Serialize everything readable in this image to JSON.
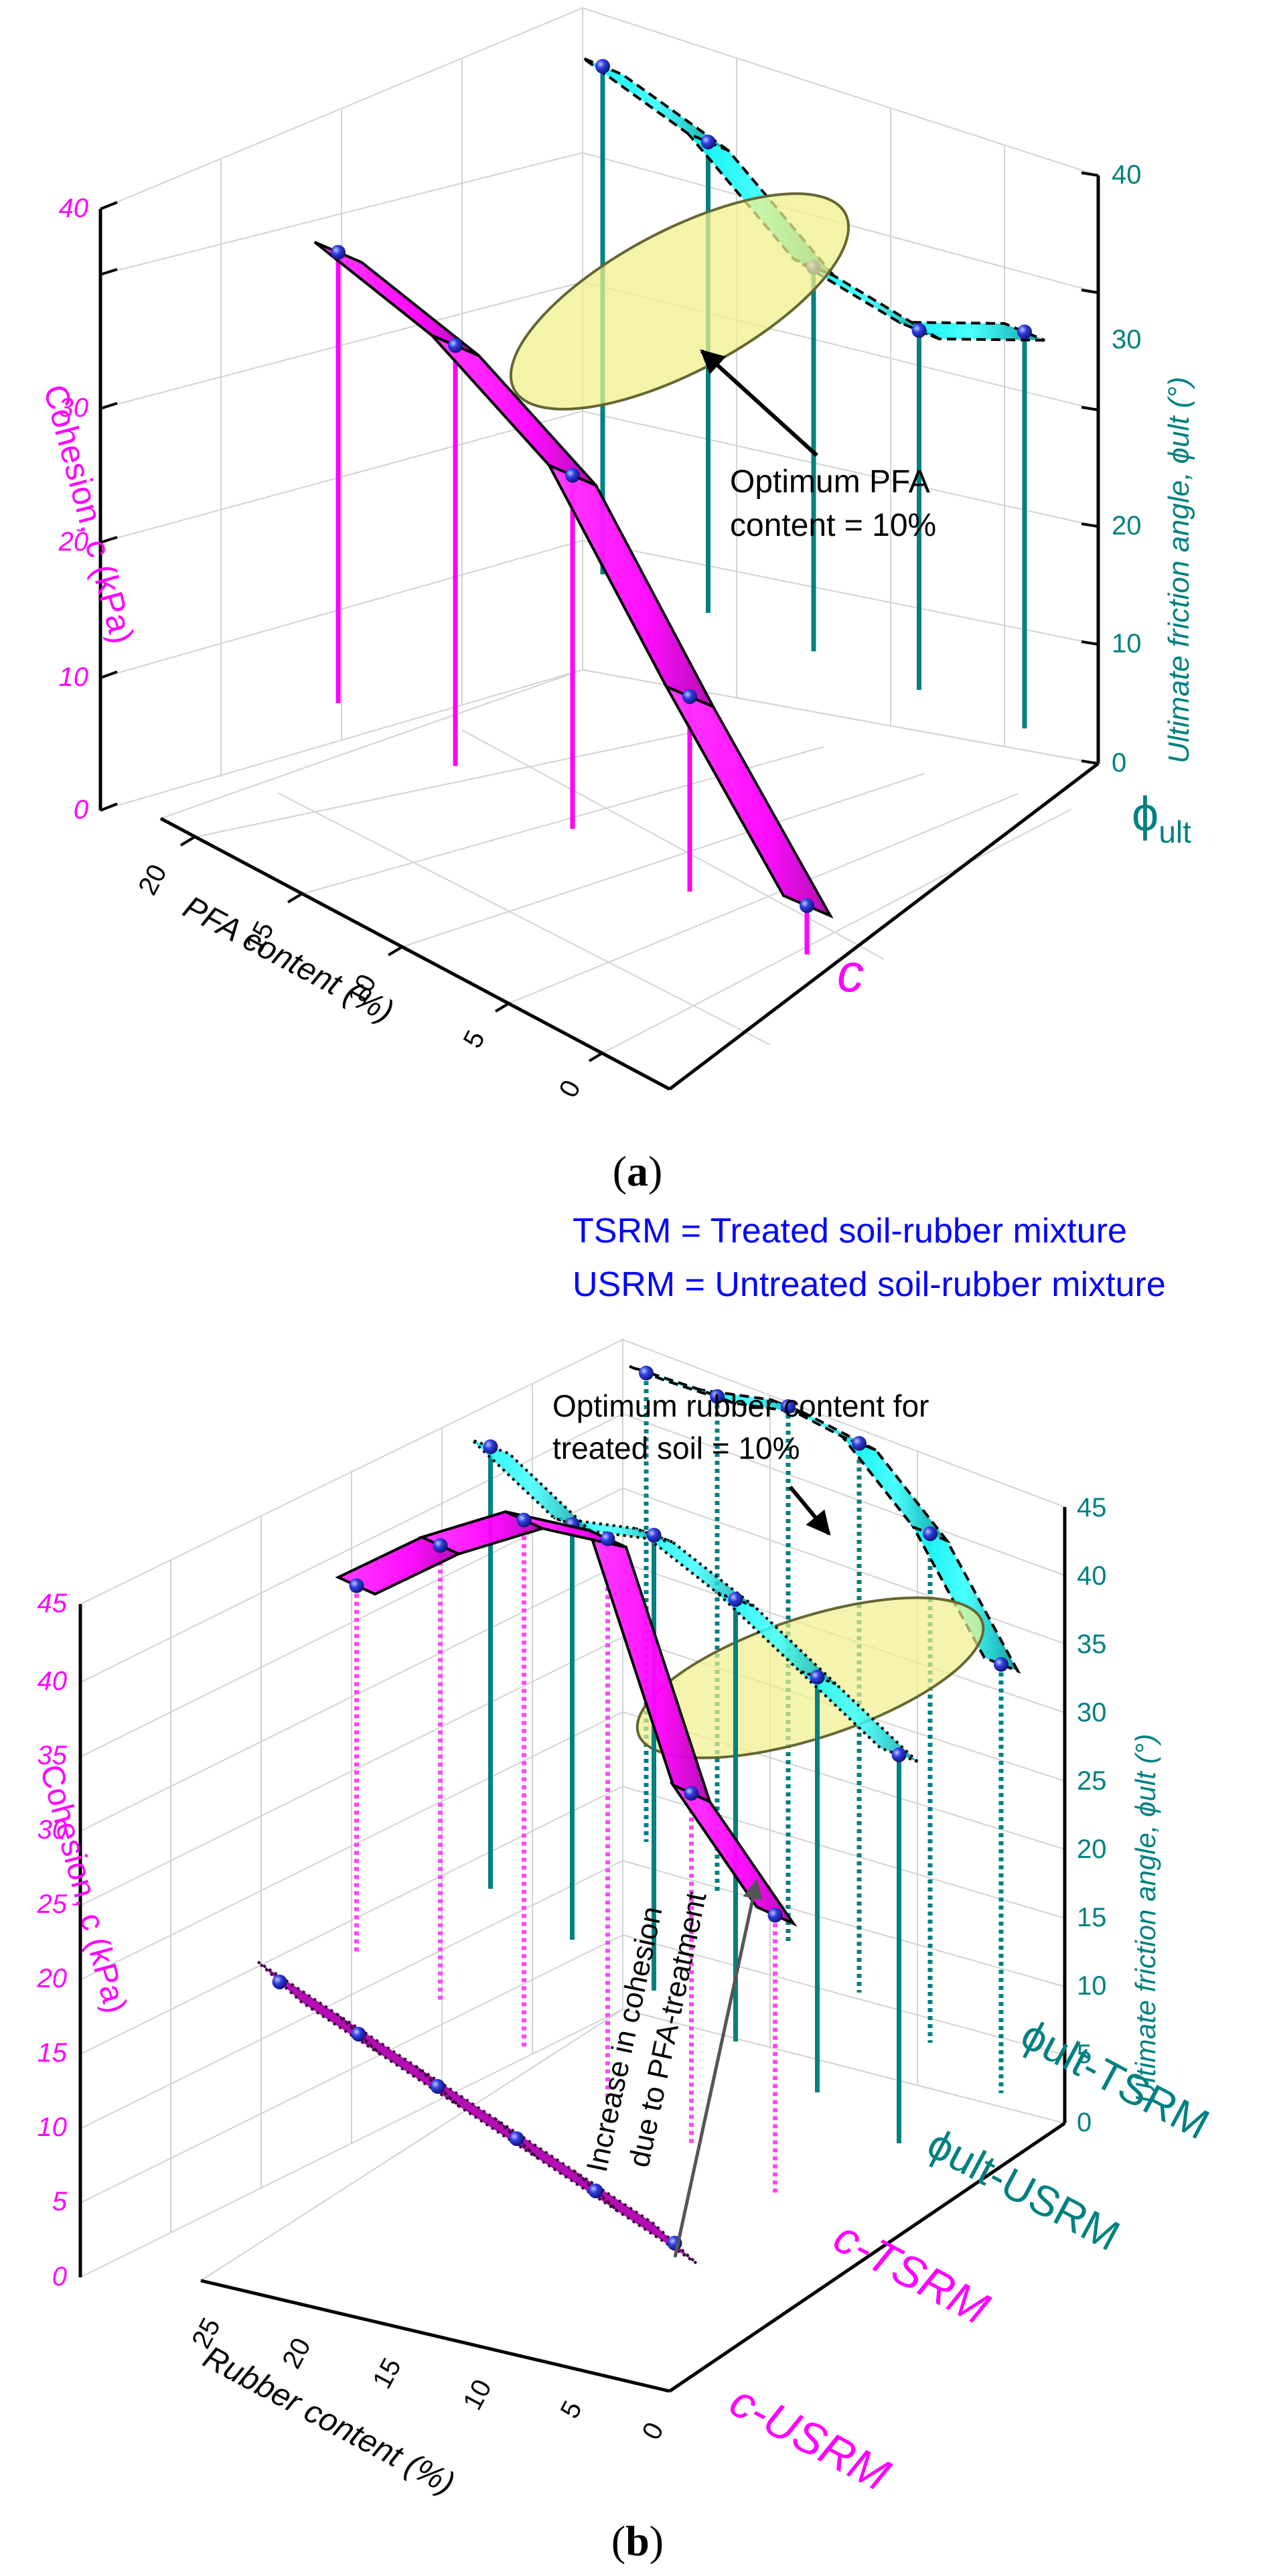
{
  "colors": {
    "magenta": "#ff00ff",
    "magenta_dark": "#e000e0",
    "magenta_band": "#b300b3",
    "teal": "#008080",
    "cyan": "#00e6e6",
    "cyan_light": "#33ffff",
    "ellipse_fill": "#f0f08c",
    "ellipse_stroke": "#666633",
    "blue_text": "#0000ff",
    "point_blue": "#1a1acc"
  },
  "chart_data": [
    {
      "panel": "a",
      "type": "3d-ribbon",
      "caption_open": "(",
      "caption_letter": "a",
      "caption_close": ")",
      "x_axis": {
        "label": "PFA content (%)",
        "ticks": [
          "0",
          "5",
          "10",
          "15",
          "20"
        ],
        "range": [
          0,
          20
        ]
      },
      "z_left": {
        "label": "Cohesion, c (kPa)",
        "ticks": [
          "0",
          "10",
          "20",
          "30",
          "40"
        ],
        "range": [
          0,
          40
        ]
      },
      "z_right": {
        "label": "Ultimate friction angle, ϕult (°)",
        "ticks": [
          "0",
          "10",
          "20",
          "30",
          "40"
        ],
        "range": [
          0,
          40
        ]
      },
      "series_labels": {
        "c": "c",
        "phi_prefix": "ϕ",
        "phi_sub": "ult"
      },
      "series": [
        {
          "name": "c",
          "x": [
            0,
            5,
            10,
            15,
            20
          ],
          "values": [
            4,
            16,
            29,
            34.5,
            37
          ]
        },
        {
          "name": "ϕult",
          "x": [
            0,
            5,
            10,
            15,
            20
          ],
          "values": [
            32,
            29,
            31,
            38,
            41
          ]
        }
      ],
      "annotation": {
        "lines": [
          "Optimum PFA",
          "content = 10%"
        ]
      }
    },
    {
      "panel": "b",
      "type": "3d-ribbon",
      "caption_open": "(",
      "caption_letter": "b",
      "caption_close": ")",
      "legend_lines": [
        "TSRM = Treated soil-rubber mixture",
        "USRM = Untreated soil-rubber mixture"
      ],
      "x_axis": {
        "label": "Rubber content (%)",
        "ticks": [
          "0",
          "5",
          "10",
          "15",
          "20",
          "25"
        ],
        "range": [
          0,
          25
        ]
      },
      "z_left": {
        "label": "Cohesion, c (kPa)",
        "ticks": [
          "0",
          "5",
          "10",
          "15",
          "20",
          "25",
          "30",
          "35",
          "40",
          "45"
        ],
        "range": [
          0,
          45
        ]
      },
      "z_right": {
        "label": "Ultimate friction angle, ϕult (°)",
        "ticks": [
          "0",
          "5",
          "10",
          "15",
          "20",
          "25",
          "30",
          "35",
          "40",
          "45"
        ],
        "range": [
          0,
          45
        ]
      },
      "series_labels": [
        "c-USRM",
        "c-TSRM",
        "ϕult-USRM",
        "ϕult-TSRM"
      ],
      "series": [
        {
          "name": "c-USRM",
          "x": [
            0,
            5,
            10,
            15,
            20,
            25
          ],
          "values": [
            0.5,
            0.5,
            0.5,
            0.5,
            0.5,
            0.5
          ]
        },
        {
          "name": "c-TSRM",
          "x": [
            0,
            5,
            10,
            15,
            20,
            25
          ],
          "values": [
            19,
            24,
            38,
            36,
            31,
            25
          ]
        },
        {
          "name": "ϕult-USRM",
          "x": [
            0,
            5,
            10,
            15,
            20,
            25
          ],
          "values": [
            29,
            31,
            33,
            34,
            31,
            33
          ]
        },
        {
          "name": "ϕult-TSRM",
          "x": [
            0,
            5,
            10,
            15,
            20,
            25
          ],
          "values": [
            32,
            38,
            41,
            40,
            37,
            35
          ]
        }
      ],
      "annotation_optimum": {
        "lines": [
          "Optimum rubber content for",
          "treated soil = 10%"
        ]
      },
      "annotation_increase": {
        "lines": [
          "Increase in cohesion",
          "due to PFA-treatment"
        ]
      }
    }
  ]
}
